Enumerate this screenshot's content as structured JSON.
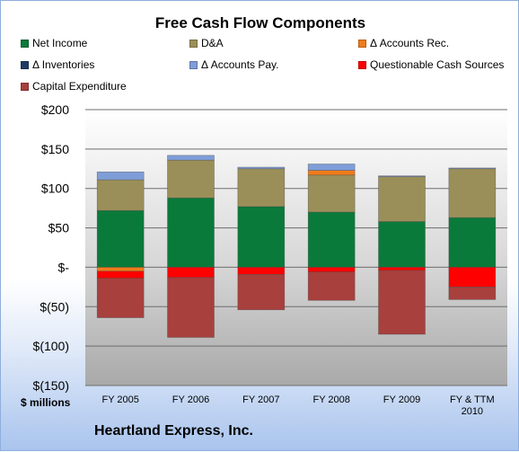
{
  "chart_data": {
    "type": "bar",
    "stacked": true,
    "title": "Free Cash Flow Components",
    "categories": [
      "FY 2005",
      "FY 2006",
      "FY 2007",
      "FY 2008",
      "FY 2009",
      "FY & TTM\n2010"
    ],
    "ylim": [
      -150,
      200
    ],
    "yticks": [
      200,
      150,
      100,
      50,
      0,
      -50,
      -100,
      -150
    ],
    "ytick_labels": [
      "$200",
      "$150",
      "$100",
      "$50",
      "$-",
      "$(50)",
      "$(100)",
      "$(150)"
    ],
    "ylabel": "$ millions",
    "legend_position": "top",
    "grid": true,
    "series": [
      {
        "name": "Net Income",
        "color": "#0a7a3a",
        "values": [
          72,
          88,
          77,
          70,
          58,
          63
        ]
      },
      {
        "name": "D&A",
        "color": "#9b8f59",
        "values": [
          39,
          48,
          48,
          47,
          57,
          62
        ]
      },
      {
        "name": "Δ Accounts Rec.",
        "color": "#f07c1a",
        "values": [
          -5,
          0,
          0,
          6,
          0,
          0
        ]
      },
      {
        "name": "Δ Inventories",
        "color": "#1f3b63",
        "values": [
          0,
          0,
          0,
          0,
          0,
          0
        ]
      },
      {
        "name": "Δ Accounts Pay.",
        "color": "#7f9ed8",
        "values": [
          10,
          6,
          2,
          8,
          1,
          1
        ]
      },
      {
        "name": "Questionable Cash Sources",
        "color": "#ff0000",
        "values": [
          -9,
          -13,
          -9,
          -6,
          -4,
          -25
        ]
      },
      {
        "name": "Capital Expenditure",
        "color": "#a8403d",
        "values": [
          -50,
          -76,
          -45,
          -36,
          -81,
          -16
        ]
      }
    ]
  },
  "footer": {
    "company": "Heartland Express, Inc.",
    "unit": "$ millions"
  }
}
